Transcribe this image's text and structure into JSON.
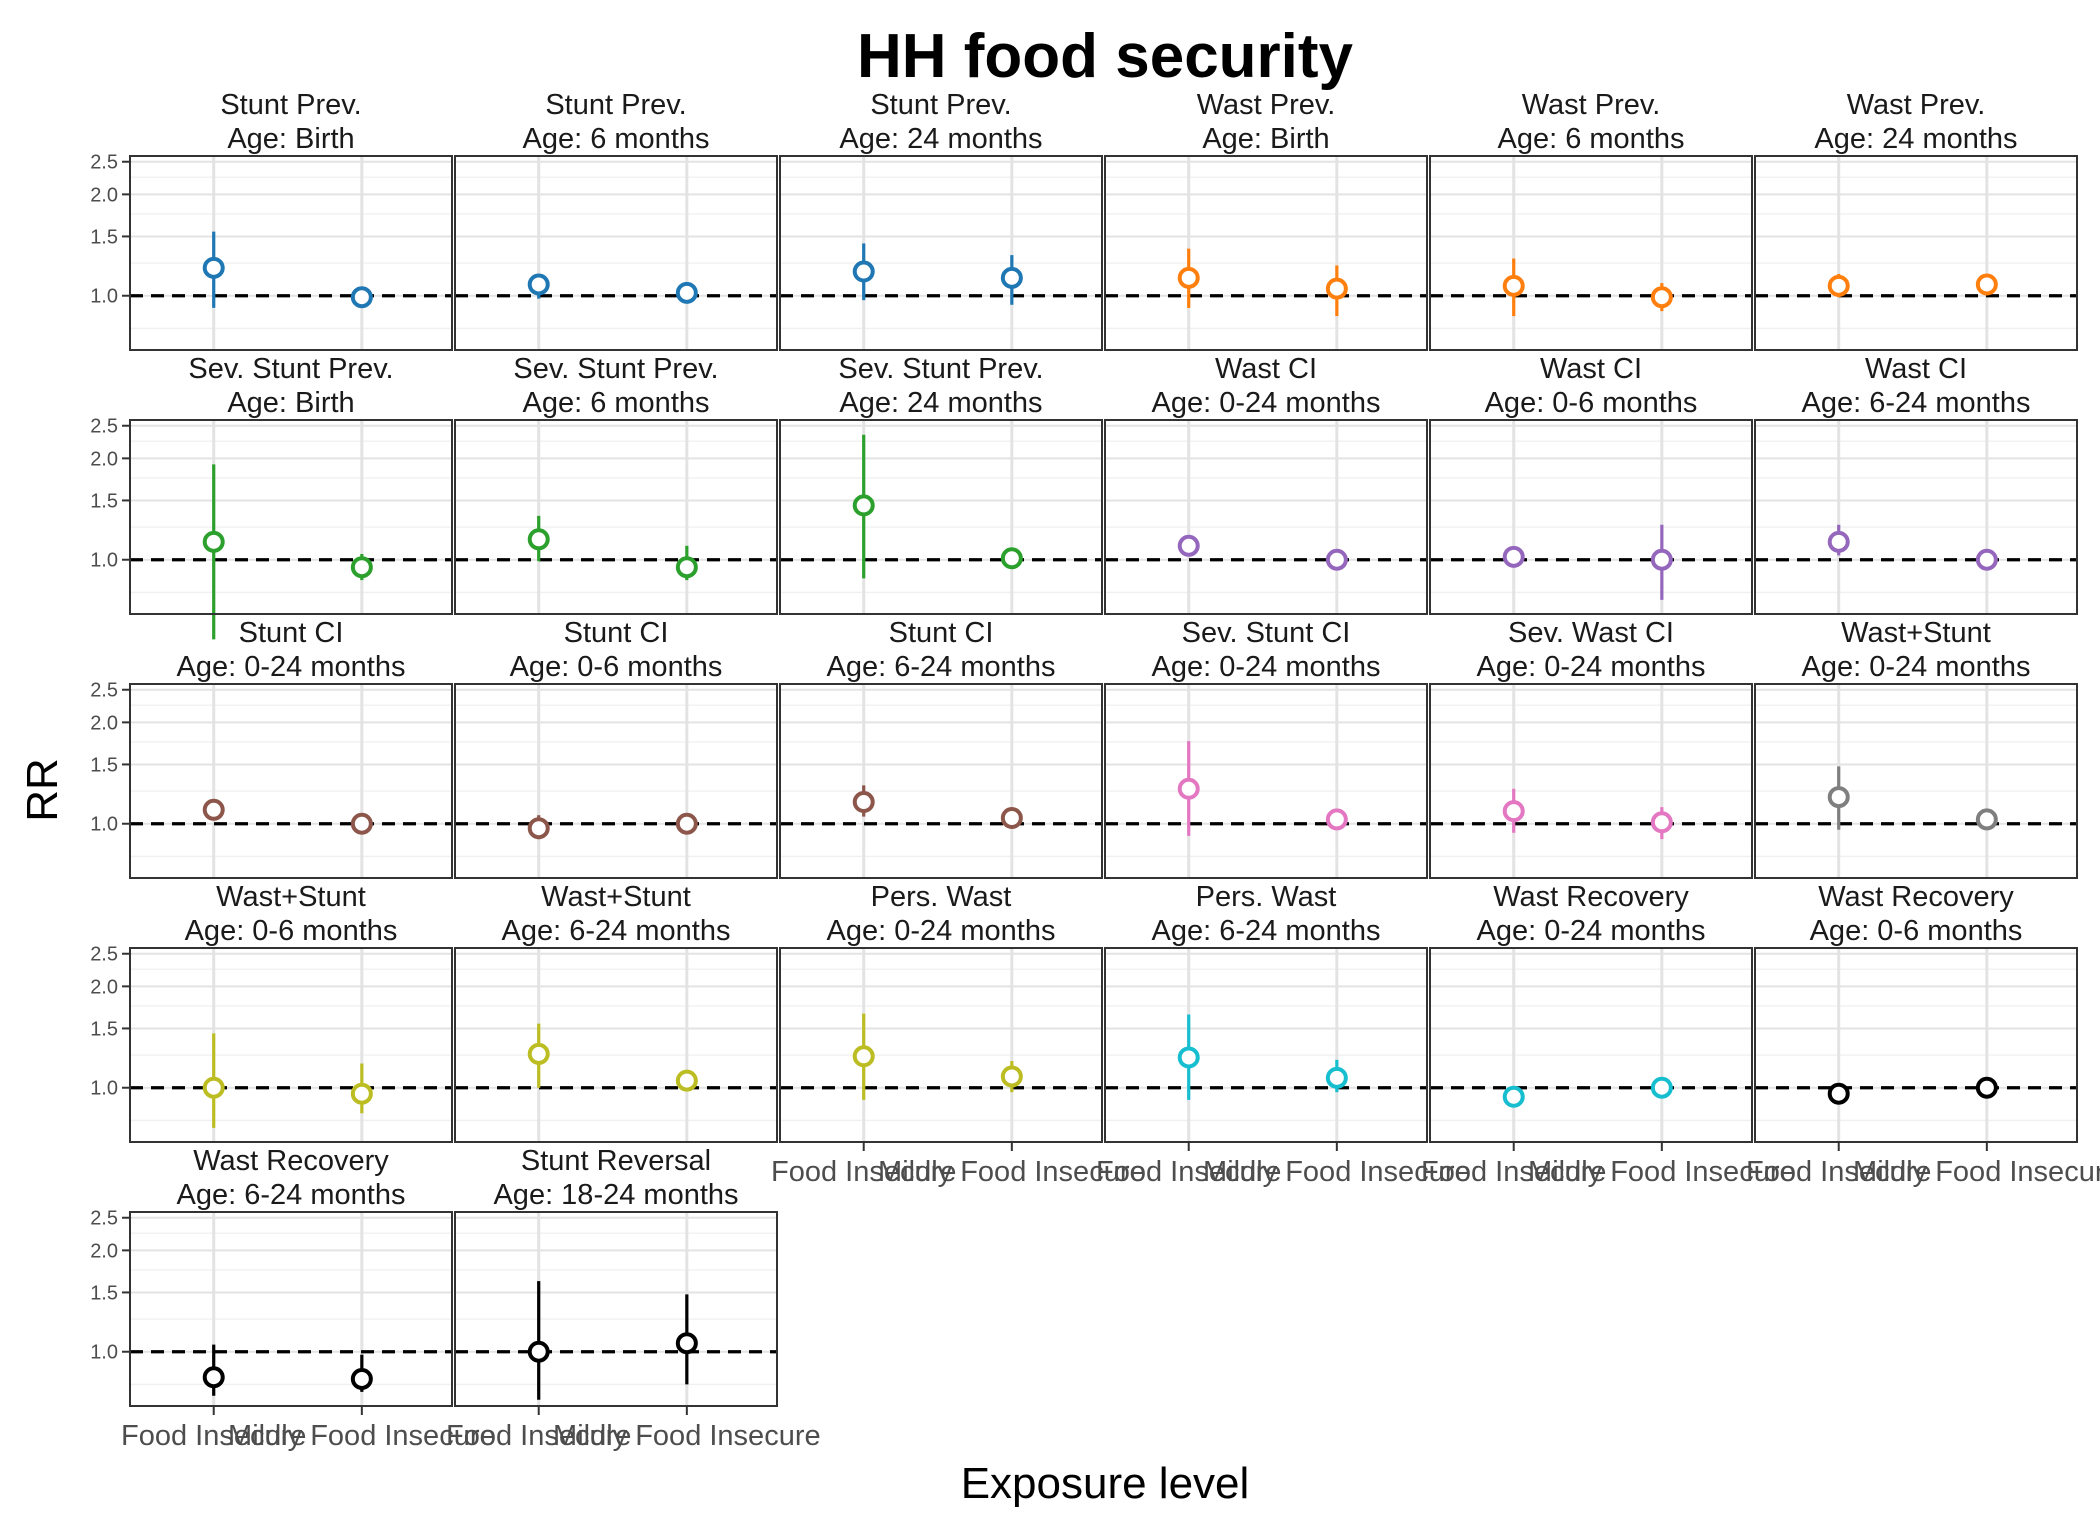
{
  "chart_data": {
    "type": "scatter",
    "title": "HH food security",
    "xlabel": "Exposure level",
    "ylabel": "RR",
    "y_scale": "log",
    "y_ticks": [
      "1.0",
      "1.5",
      "2.0",
      "2.5"
    ],
    "y_tick_values": [
      1.0,
      1.5,
      2.0,
      2.5
    ],
    "ylim": [
      0.69,
      2.6
    ],
    "categories": [
      "Food Insecure",
      "Mildly Food Insecure"
    ],
    "grid": true,
    "reference_line": 1.0,
    "panels": [
      {
        "title": "Stunt Prev.",
        "age": "Age: Birth",
        "color": "#1F77B4",
        "points": [
          {
            "x": "Food Insecure",
            "rr": 1.21,
            "lo": 0.92,
            "hi": 1.55
          },
          {
            "x": "Mildly Food Insecure",
            "rr": 0.99,
            "lo": 0.96,
            "hi": 1.03
          }
        ]
      },
      {
        "title": "Stunt Prev.",
        "age": "Age: 6 months",
        "color": "#1F77B4",
        "points": [
          {
            "x": "Food Insecure",
            "rr": 1.08,
            "lo": 0.98,
            "hi": 1.16
          },
          {
            "x": "Mildly Food Insecure",
            "rr": 1.02,
            "lo": 0.98,
            "hi": 1.06
          }
        ]
      },
      {
        "title": "Stunt Prev.",
        "age": "Age: 24 months",
        "color": "#1F77B4",
        "points": [
          {
            "x": "Food Insecure",
            "rr": 1.18,
            "lo": 0.97,
            "hi": 1.43
          },
          {
            "x": "Mildly Food Insecure",
            "rr": 1.13,
            "lo": 0.94,
            "hi": 1.32
          }
        ]
      },
      {
        "title": "Wast Prev.",
        "age": "Age: Birth",
        "color": "#FF7F0E",
        "points": [
          {
            "x": "Food Insecure",
            "rr": 1.13,
            "lo": 0.92,
            "hi": 1.38
          },
          {
            "x": "Mildly Food Insecure",
            "rr": 1.05,
            "lo": 0.87,
            "hi": 1.23
          }
        ]
      },
      {
        "title": "Wast Prev.",
        "age": "Age: 6 months",
        "color": "#FF7F0E",
        "points": [
          {
            "x": "Food Insecure",
            "rr": 1.07,
            "lo": 0.87,
            "hi": 1.29
          },
          {
            "x": "Mildly Food Insecure",
            "rr": 0.99,
            "lo": 0.9,
            "hi": 1.09
          }
        ]
      },
      {
        "title": "Wast Prev.",
        "age": "Age: 24 months",
        "color": "#FF7F0E",
        "points": [
          {
            "x": "Food Insecure",
            "rr": 1.07,
            "lo": 0.99,
            "hi": 1.16
          },
          {
            "x": "Mildly Food Insecure",
            "rr": 1.08,
            "lo": 1.02,
            "hi": 1.14
          }
        ]
      },
      {
        "title": "Sev. Stunt Prev.",
        "age": "Age: Birth",
        "color": "#2CA02C",
        "points": [
          {
            "x": "Food Insecure",
            "rr": 1.13,
            "lo": 0.58,
            "hi": 1.92
          },
          {
            "x": "Mildly Food Insecure",
            "rr": 0.95,
            "lo": 0.87,
            "hi": 1.04
          }
        ]
      },
      {
        "title": "Sev. Stunt Prev.",
        "age": "Age: 6 months",
        "color": "#2CA02C",
        "points": [
          {
            "x": "Food Insecure",
            "rr": 1.15,
            "lo": 0.99,
            "hi": 1.35
          },
          {
            "x": "Mildly Food Insecure",
            "rr": 0.95,
            "lo": 0.87,
            "hi": 1.1
          }
        ]
      },
      {
        "title": "Sev. Stunt Prev.",
        "age": "Age: 24 months",
        "color": "#2CA02C",
        "points": [
          {
            "x": "Food Insecure",
            "rr": 1.45,
            "lo": 0.88,
            "hi": 2.35
          },
          {
            "x": "Mildly Food Insecure",
            "rr": 1.01,
            "lo": 0.95,
            "hi": 1.08
          }
        ]
      },
      {
        "title": "Wast CI",
        "age": "Age: 0-24 months",
        "color": "#9467BD",
        "points": [
          {
            "x": "Food Insecure",
            "rr": 1.1,
            "lo": 1.05,
            "hi": 1.16
          },
          {
            "x": "Mildly Food Insecure",
            "rr": 1.0,
            "lo": 0.97,
            "hi": 1.04
          }
        ]
      },
      {
        "title": "Wast CI",
        "age": "Age: 0-6 months",
        "color": "#9467BD",
        "points": [
          {
            "x": "Food Insecure",
            "rr": 1.02,
            "lo": 0.97,
            "hi": 1.07
          },
          {
            "x": "Mildly Food Insecure",
            "rr": 1.0,
            "lo": 0.76,
            "hi": 1.27
          }
        ]
      },
      {
        "title": "Wast CI",
        "age": "Age: 6-24 months",
        "color": "#9467BD",
        "points": [
          {
            "x": "Food Insecure",
            "rr": 1.13,
            "lo": 1.03,
            "hi": 1.27
          },
          {
            "x": "Mildly Food Insecure",
            "rr": 1.0,
            "lo": 0.96,
            "hi": 1.05
          }
        ]
      },
      {
        "title": "Stunt CI",
        "age": "Age: 0-24 months",
        "color": "#8C564B",
        "points": [
          {
            "x": "Food Insecure",
            "rr": 1.1,
            "lo": 1.04,
            "hi": 1.16
          },
          {
            "x": "Mildly Food Insecure",
            "rr": 1.0,
            "lo": 0.96,
            "hi": 1.04
          }
        ]
      },
      {
        "title": "Stunt CI",
        "age": "Age: 0-6 months",
        "color": "#8C564B",
        "points": [
          {
            "x": "Food Insecure",
            "rr": 0.97,
            "lo": 0.9,
            "hi": 1.06
          },
          {
            "x": "Mildly Food Insecure",
            "rr": 1.0,
            "lo": 0.96,
            "hi": 1.04
          }
        ]
      },
      {
        "title": "Stunt CI",
        "age": "Age: 6-24 months",
        "color": "#8C564B",
        "points": [
          {
            "x": "Food Insecure",
            "rr": 1.16,
            "lo": 1.05,
            "hi": 1.3
          },
          {
            "x": "Mildly Food Insecure",
            "rr": 1.04,
            "lo": 1.0,
            "hi": 1.08
          }
        ]
      },
      {
        "title": "Sev. Stunt CI",
        "age": "Age: 0-24 months",
        "color": "#E377C2",
        "points": [
          {
            "x": "Food Insecure",
            "rr": 1.27,
            "lo": 0.92,
            "hi": 1.76
          },
          {
            "x": "Mildly Food Insecure",
            "rr": 1.03,
            "lo": 0.97,
            "hi": 1.1
          }
        ]
      },
      {
        "title": "Sev. Wast CI",
        "age": "Age: 0-24 months",
        "color": "#E377C2",
        "points": [
          {
            "x": "Food Insecure",
            "rr": 1.09,
            "lo": 0.94,
            "hi": 1.27
          },
          {
            "x": "Mildly Food Insecure",
            "rr": 1.01,
            "lo": 0.9,
            "hi": 1.12
          }
        ]
      },
      {
        "title": "Wast+Stunt",
        "age": "Age: 0-24 months",
        "color": "#7F7F7F",
        "points": [
          {
            "x": "Food Insecure",
            "rr": 1.2,
            "lo": 0.96,
            "hi": 1.48
          },
          {
            "x": "Mildly Food Insecure",
            "rr": 1.03,
            "lo": 0.98,
            "hi": 1.09
          }
        ]
      },
      {
        "title": "Wast+Stunt",
        "age": "Age: 0-6 months",
        "color": "#BCBD22",
        "points": [
          {
            "x": "Food Insecure",
            "rr": 1.0,
            "lo": 0.76,
            "hi": 1.45
          },
          {
            "x": "Mildly Food Insecure",
            "rr": 0.96,
            "lo": 0.84,
            "hi": 1.18
          }
        ]
      },
      {
        "title": "Wast+Stunt",
        "age": "Age: 6-24 months",
        "color": "#BCBD22",
        "points": [
          {
            "x": "Food Insecure",
            "rr": 1.26,
            "lo": 1.0,
            "hi": 1.55
          },
          {
            "x": "Mildly Food Insecure",
            "rr": 1.05,
            "lo": 0.99,
            "hi": 1.11
          }
        ]
      },
      {
        "title": "Pers. Wast",
        "age": "Age: 0-24 months",
        "color": "#BCBD22",
        "points": [
          {
            "x": "Food Insecure",
            "rr": 1.24,
            "lo": 0.92,
            "hi": 1.66
          },
          {
            "x": "Mildly Food Insecure",
            "rr": 1.08,
            "lo": 0.97,
            "hi": 1.2
          }
        ]
      },
      {
        "title": "Pers. Wast",
        "age": "Age: 6-24 months",
        "color": "#17BECF",
        "points": [
          {
            "x": "Food Insecure",
            "rr": 1.23,
            "lo": 0.92,
            "hi": 1.65
          },
          {
            "x": "Mildly Food Insecure",
            "rr": 1.07,
            "lo": 0.97,
            "hi": 1.21
          }
        ]
      },
      {
        "title": "Wast Recovery",
        "age": "Age: 0-24 months",
        "color": "#17BECF",
        "points": [
          {
            "x": "Food Insecure",
            "rr": 0.94,
            "lo": 0.9,
            "hi": 0.98
          },
          {
            "x": "Mildly Food Insecure",
            "rr": 1.0,
            "lo": 0.97,
            "hi": 1.04
          }
        ]
      },
      {
        "title": "Wast Recovery",
        "age": "Age: 0-6 months",
        "color": "#000000",
        "points": [
          {
            "x": "Food Insecure",
            "rr": 0.96,
            "lo": 0.93,
            "hi": 0.99
          },
          {
            "x": "Mildly Food Insecure",
            "rr": 1.0,
            "lo": 0.97,
            "hi": 1.03
          }
        ]
      },
      {
        "title": "Wast Recovery",
        "age": "Age: 6-24 months",
        "color": "#000000",
        "points": [
          {
            "x": "Food Insecure",
            "rr": 0.84,
            "lo": 0.74,
            "hi": 1.05
          },
          {
            "x": "Mildly Food Insecure",
            "rr": 0.83,
            "lo": 0.76,
            "hi": 0.98
          }
        ]
      },
      {
        "title": "Stunt Reversal",
        "age": "Age: 18-24 months",
        "color": "#000000",
        "points": [
          {
            "x": "Food Insecure",
            "rr": 1.0,
            "lo": 0.72,
            "hi": 1.62
          },
          {
            "x": "Mildly Food Insecure",
            "rr": 1.06,
            "lo": 0.8,
            "hi": 1.48
          }
        ]
      }
    ]
  }
}
